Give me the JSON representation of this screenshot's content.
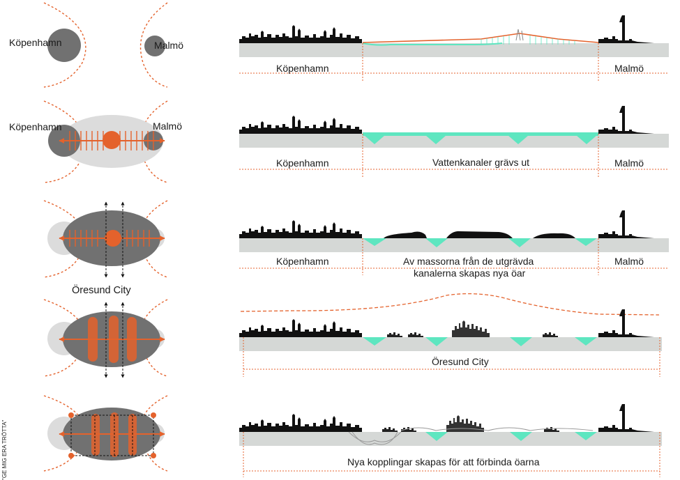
{
  "colors": {
    "orange": "#e4622c",
    "dark_grey": "#717171",
    "light_grey": "#dcdcdc",
    "ground": "#d5d8d6",
    "water": "#5ee6c0",
    "black": "#111111"
  },
  "rows": [
    {
      "city_left": "Köpenhamn",
      "city_right": "Malmö",
      "section_left": "Köpenhamn",
      "section_right": "Malmö",
      "section_middle": ""
    },
    {
      "city_left": "Köpenhamn",
      "city_right": "Malmö",
      "section_left": "Köpenhamn",
      "section_right": "Malmö",
      "section_middle": "Vattenkanaler grävs ut"
    },
    {
      "caption": "Öresund City",
      "section_left": "Köpenhamn",
      "section_right": "Malmö",
      "section_middle_line1": "Av massorna från de utgrävda",
      "section_middle_line2": "kanalerna skapas nya öar"
    },
    {
      "section_middle": "Öresund City"
    },
    {
      "section_middle": "Nya kopplingar skapas för att förbinda öarna"
    }
  ],
  "side_text": "\"GE MIG ERA TRÖTTA\""
}
